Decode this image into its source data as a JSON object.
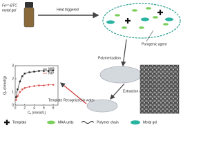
{
  "gel_label": "Fe³⁺-BTC",
  "gel_label_2": "metal gel",
  "step_heat": "Heat triggered",
  "porogen_label": "Porogenic agent",
  "step_polymerization": "Polymerization",
  "step_extraction": "Extraction of template and gel",
  "step_recognition": "Template Recognized in water",
  "legend": [
    "Template",
    "MAA units",
    "Polymer chain",
    "Metal gel"
  ],
  "chart_data": {
    "type": "line",
    "xlabel": "Cₑ (mmol/L)",
    "ylabel": "Qₑ (mmol/g)",
    "x": [
      0.2,
      0.5,
      1,
      1.5,
      2,
      3,
      4,
      5,
      6,
      7,
      8
    ],
    "series": [
      {
        "name": "MIP",
        "color": "#222222",
        "marker": "square",
        "values": [
          0.6,
          1.2,
          1.8,
          2.2,
          2.4,
          2.5,
          2.55,
          2.6,
          2.6,
          2.6,
          2.65
        ]
      },
      {
        "name": "NIP",
        "color": "#d9534f",
        "marker": "circle",
        "values": [
          0.4,
          0.7,
          1.0,
          1.2,
          1.3,
          1.4,
          1.45,
          1.5,
          1.5,
          1.55,
          1.55
        ]
      }
    ],
    "xlim": [
      0,
      9
    ],
    "xticks": [
      0,
      2,
      4,
      6,
      8
    ],
    "ylim": [
      0,
      3
    ],
    "yticks": [
      0,
      1,
      2,
      3
    ]
  }
}
